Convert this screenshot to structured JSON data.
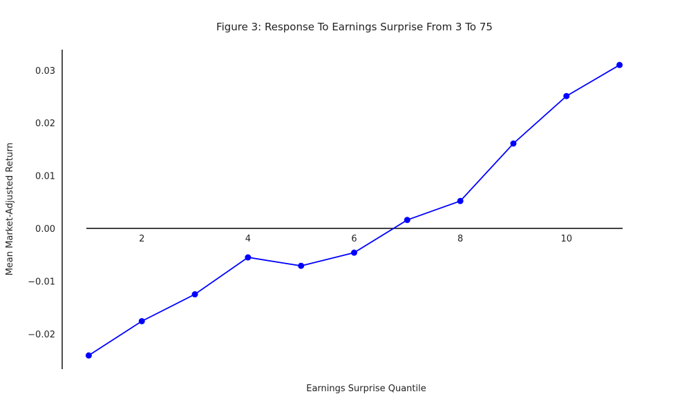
{
  "chart_data": {
    "type": "line",
    "title": "Figure 3: Response To Earnings Surprise From 3 To 75",
    "xlabel": "Earnings Surprise Quantile",
    "ylabel": "Mean Market-Adjusted Return",
    "x": [
      1,
      2,
      3,
      4,
      5,
      6,
      7,
      8,
      9,
      10,
      11
    ],
    "series": [
      {
        "values": [
          -0.0241,
          -0.0176,
          -0.0125,
          -0.0055,
          -0.0071,
          -0.0046,
          0.0016,
          0.0052,
          0.0161,
          0.0251,
          0.031
        ]
      }
    ],
    "xticks": [
      2,
      4,
      6,
      8,
      10
    ],
    "xtick_labels": [
      "2",
      "4",
      "6",
      "8",
      "10"
    ],
    "yticks": [
      -0.02,
      -0.01,
      0.0,
      0.01,
      0.02,
      0.03
    ],
    "ytick_labels": [
      "−0.02",
      "−0.01",
      "0.00",
      "0.01",
      "0.02",
      "0.03"
    ],
    "xlim": [
      0.5,
      11.5
    ],
    "ylim": [
      -0.0267,
      0.0339
    ],
    "grid": false,
    "legend": "none",
    "x_axis_position": "y=0",
    "colors": {
      "line": "#0000ff",
      "marker": "#0000ff",
      "axis": "#000000",
      "text": "#222222"
    }
  }
}
